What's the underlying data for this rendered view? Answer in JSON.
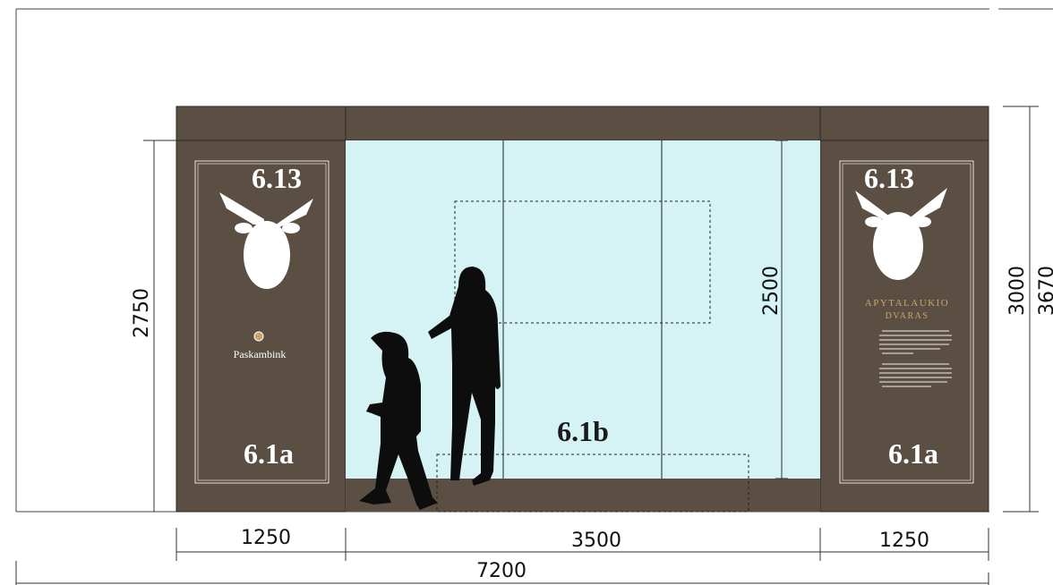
{
  "panels": {
    "left": {
      "code_top": "6.13",
      "button_label": "Paskambink",
      "code_bottom": "6.1a"
    },
    "right": {
      "code_top": "6.13",
      "brand_line1": "APYTALAUKIO",
      "brand_line2": "DVARAS",
      "code_bottom": "6.1a"
    }
  },
  "glass": {
    "code": "6.1b"
  },
  "dimensions": {
    "panel_height": "2750",
    "glass_height": "2500",
    "facade_height": "3000",
    "total_height": "3670",
    "left_width": "1250",
    "glass_width": "3500",
    "right_width": "1250",
    "total_width": "7200"
  }
}
